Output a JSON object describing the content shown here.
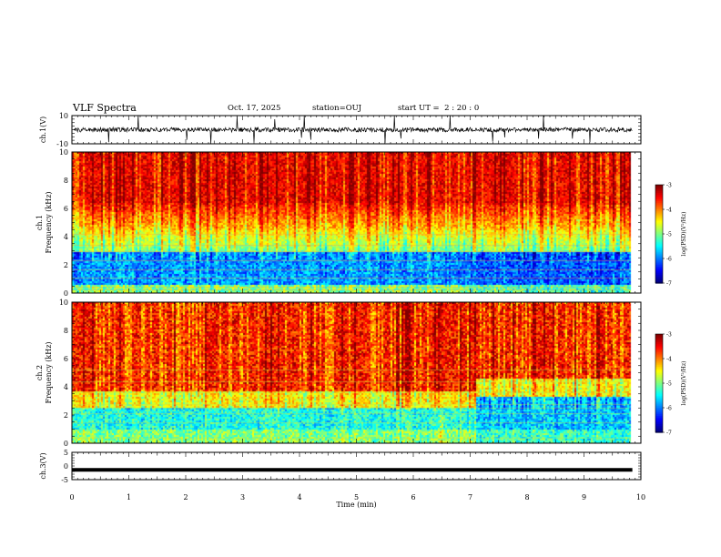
{
  "header": {
    "title": "VLF Spectra",
    "date": "Oct. 17, 2025",
    "station": "station=OUJ",
    "start": "start UT =  2 : 20 : 0"
  },
  "chart_data": [
    {
      "type": "line",
      "panel": "ch1-voltage",
      "ylabel": "ch.1(V)",
      "ylim": [
        -10,
        10
      ],
      "yticks": [
        "10",
        "-10"
      ],
      "xlim": [
        0,
        10
      ],
      "baseline": 0,
      "color": "#000000",
      "description_of_signal": "noisy voltage trace around 0 V with spikes"
    },
    {
      "type": "heatmap",
      "panel": "ch1-spectrogram",
      "ylabel": "Frequency (kHz)",
      "ylabel2": "ch.1",
      "ylim": [
        0,
        10
      ],
      "yticks": [
        "0",
        "2",
        "4",
        "6",
        "8",
        "10"
      ],
      "xlim": [
        0,
        10
      ],
      "data_end_min": 9.8,
      "colorbar": {
        "label": "log(PSD)(V²/Hz)",
        "range": [
          -7,
          -3
        ],
        "ticks": [
          "-3",
          "-4",
          "-5",
          "-6",
          "-7"
        ]
      }
    },
    {
      "type": "heatmap",
      "panel": "ch2-spectrogram",
      "ylabel": "Frequency (kHz)",
      "ylabel2": "ch.2",
      "ylim": [
        0,
        10
      ],
      "yticks": [
        "0",
        "2",
        "4",
        "6",
        "8",
        "10"
      ],
      "xlim": [
        0,
        10
      ],
      "data_end_min": 9.8,
      "colorbar": {
        "label": "log(PSD)(V²/Hz)",
        "range": [
          -7,
          -3
        ],
        "ticks": [
          "-3",
          "-4",
          "-5",
          "-6",
          "-7"
        ]
      }
    },
    {
      "type": "line",
      "panel": "ch3-voltage",
      "ylabel": "ch.3(V)",
      "ylim": [
        -5,
        5
      ],
      "yticks": [
        "5",
        "0",
        "-5"
      ],
      "xlim": [
        0,
        10
      ],
      "constant_value": -1.4,
      "color": "#000000"
    }
  ],
  "xaxis": {
    "label": "Time (min)",
    "ticks": [
      "0",
      "1",
      "2",
      "3",
      "4",
      "5",
      "6",
      "7",
      "8",
      "9",
      "10"
    ],
    "range": [
      0,
      10
    ]
  }
}
